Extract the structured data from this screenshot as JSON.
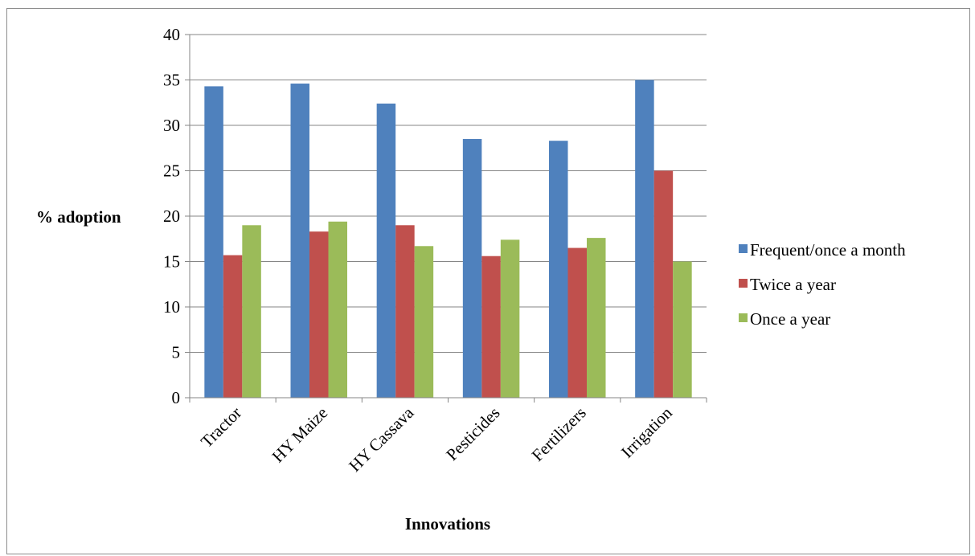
{
  "chart_data": {
    "type": "bar",
    "categories": [
      "Tractor",
      "HY Maize",
      "HY Cassava",
      "Pesticides",
      "Fertilizers",
      "Irrigation"
    ],
    "series": [
      {
        "name": "Frequent/once a month",
        "color": "#4f81bd",
        "values": [
          34.3,
          34.6,
          32.4,
          28.5,
          28.3,
          35.0
        ]
      },
      {
        "name": "Twice a year",
        "color": "#c0504d",
        "values": [
          15.7,
          18.3,
          19.0,
          15.6,
          16.5,
          25.0
        ]
      },
      {
        "name": "Once a year",
        "color": "#9bbb59",
        "values": [
          19.0,
          19.4,
          16.7,
          17.4,
          17.6,
          15.0
        ]
      }
    ],
    "xlabel": "Innovations",
    "ylabel": "% adoption",
    "ylim": [
      0,
      40
    ],
    "yticks": [
      0,
      5,
      10,
      15,
      20,
      25,
      30,
      35,
      40
    ],
    "grid": true,
    "legend_position": "right"
  }
}
